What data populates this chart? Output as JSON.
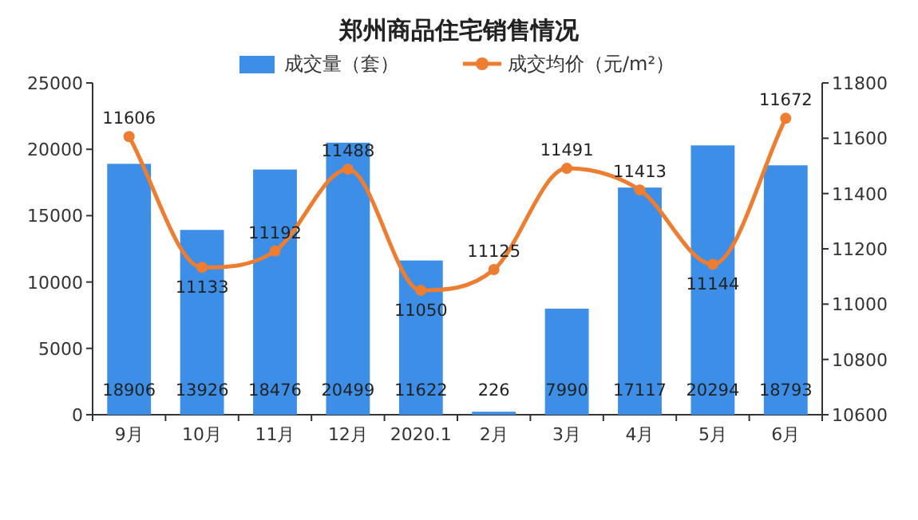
{
  "chart_data": {
    "type": "bar",
    "title": "郑州商品住宅销售情况",
    "categories": [
      "9月",
      "10月",
      "11月",
      "12月",
      "2020.1",
      "2月",
      "3月",
      "4月",
      "5月",
      "6月"
    ],
    "series": [
      {
        "name": "成交量（套）",
        "color": "#3d8ee6",
        "values": [
          18906,
          13926,
          18476,
          20499,
          11622,
          226,
          7990,
          17117,
          20294,
          18793
        ]
      },
      {
        "name": "成交均价（元/m²）",
        "type": "line",
        "axis": "y2",
        "color": "#ed7d31",
        "values": [
          11606,
          11133,
          11192,
          11488,
          11050,
          11125,
          11491,
          11413,
          11144,
          11672
        ]
      }
    ],
    "ylim": [
      0,
      25000
    ],
    "yticks": [
      0,
      5000,
      10000,
      15000,
      20000,
      25000
    ],
    "y2lim": [
      10600,
      11800
    ],
    "y2ticks": [
      10600,
      10800,
      11000,
      11200,
      11400,
      11600,
      11800
    ],
    "data_labels": true,
    "legend": "top",
    "marker": "circle",
    "grid": false
  }
}
